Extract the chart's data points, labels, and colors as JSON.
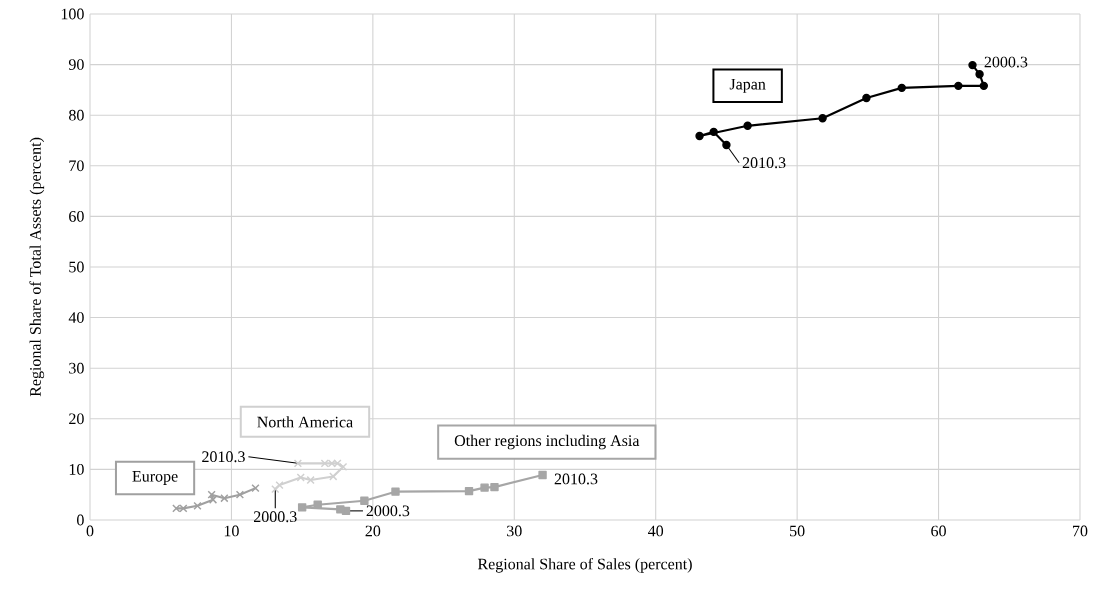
{
  "chart_data": {
    "type": "line",
    "xlabel": "Regional Share of Sales (percent)",
    "ylabel": "Regional Share of  Total Assets (percent)",
    "xlim": [
      0,
      70
    ],
    "ylim": [
      0,
      100
    ],
    "xticks": [
      0,
      10,
      20,
      30,
      40,
      50,
      60,
      70
    ],
    "yticks": [
      0,
      10,
      20,
      30,
      40,
      50,
      60,
      70,
      80,
      90,
      100
    ],
    "grid": true,
    "series": [
      {
        "name": "Japan",
        "color": "#000000",
        "marker": "circle",
        "x": [
          62.4,
          62.9,
          63.2,
          61.4,
          57.4,
          54.9,
          51.8,
          46.5,
          43.1,
          44.1,
          45.0
        ],
        "values": [
          89.9,
          88.1,
          85.8,
          85.8,
          85.4,
          83.4,
          79.4,
          77.9,
          75.9,
          76.7,
          74.1
        ]
      },
      {
        "name": "North America",
        "color": "#d0d0d0",
        "marker": "cross",
        "x": [
          13.1,
          13.4,
          14.9,
          15.6,
          17.2,
          17.9,
          17.5,
          17.1,
          16.6,
          14.7
        ],
        "values": [
          6.1,
          6.9,
          8.4,
          7.9,
          8.6,
          10.5,
          11.2,
          11.2,
          11.2,
          11.2
        ]
      },
      {
        "name": "Europe",
        "color": "#a0a0a0",
        "marker": "cross",
        "x": [
          11.7,
          10.6,
          9.5,
          8.6,
          8.7,
          7.6,
          6.6,
          6.1
        ],
        "values": [
          6.3,
          5.0,
          4.3,
          5.0,
          4.0,
          2.8,
          2.3,
          2.3
        ]
      },
      {
        "name": "Other regions including Asia",
        "color": "#a6a6a6",
        "marker": "square",
        "x": [
          18.1,
          17.7,
          15.0,
          16.1,
          19.4,
          21.6,
          26.8,
          27.9,
          28.6,
          32.0
        ],
        "values": [
          1.8,
          2.1,
          2.5,
          3.0,
          3.8,
          5.6,
          5.7,
          6.4,
          6.5,
          8.9
        ]
      }
    ],
    "annotations": [
      {
        "text": "2000.3",
        "x": 62.4,
        "y": 89.9
      },
      {
        "text": "2010.3",
        "x": 45.0,
        "y": 74.1
      },
      {
        "text": "2010.3",
        "x": 14.7,
        "y": 11.2
      },
      {
        "text": "2000.3",
        "x": 13.1,
        "y": 6.1
      },
      {
        "text": "2000.3",
        "x": 18.1,
        "y": 1.8
      },
      {
        "text": "2010.3",
        "x": 32.0,
        "y": 8.9
      }
    ]
  }
}
